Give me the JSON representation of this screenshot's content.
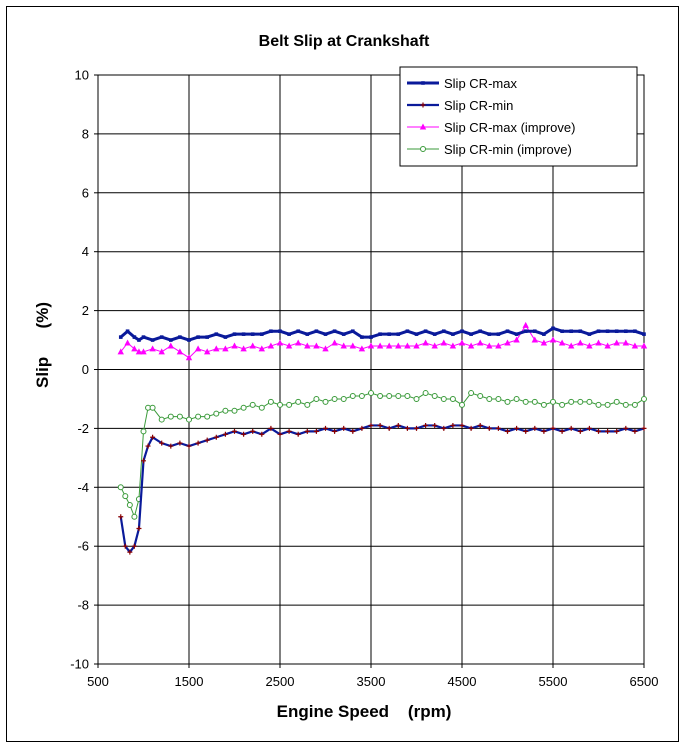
{
  "chart_data": {
    "type": "line",
    "title": "Belt Slip at Crankshaft",
    "xlabel": "Engine Speed    (rpm)",
    "ylabel": "Slip      (%)",
    "xlim": [
      500,
      6500
    ],
    "ylim": [
      -10,
      10
    ],
    "xticks": [
      "500",
      "1500",
      "2500",
      "3500",
      "4500",
      "5500",
      "6500"
    ],
    "yticks": [
      "-10",
      "-8",
      "-6",
      "-4",
      "-2",
      "0",
      "2",
      "4",
      "6",
      "8",
      "10"
    ],
    "grid": true,
    "legend_position": "top-right",
    "series": [
      {
        "name": "Slip CR-max",
        "color": "#0a1a9a",
        "marker": "square",
        "x": [
          750,
          825,
          900,
          950,
          1000,
          1100,
          1200,
          1300,
          1400,
          1500,
          1600,
          1700,
          1800,
          1900,
          2000,
          2100,
          2200,
          2300,
          2400,
          2500,
          2600,
          2700,
          2800,
          2900,
          3000,
          3100,
          3200,
          3300,
          3400,
          3500,
          3600,
          3700,
          3800,
          3900,
          4000,
          4100,
          4200,
          4300,
          4400,
          4500,
          4600,
          4700,
          4800,
          4900,
          5000,
          5100,
          5200,
          5300,
          5400,
          5500,
          5600,
          5700,
          5800,
          5900,
          6000,
          6100,
          6200,
          6300,
          6400,
          6500
        ],
        "y": [
          1.1,
          1.3,
          1.1,
          1.0,
          1.1,
          1.0,
          1.1,
          1.0,
          1.1,
          1.0,
          1.1,
          1.1,
          1.2,
          1.1,
          1.2,
          1.2,
          1.2,
          1.2,
          1.3,
          1.3,
          1.2,
          1.3,
          1.2,
          1.3,
          1.2,
          1.3,
          1.2,
          1.3,
          1.1,
          1.1,
          1.2,
          1.2,
          1.2,
          1.3,
          1.2,
          1.3,
          1.2,
          1.3,
          1.2,
          1.3,
          1.2,
          1.3,
          1.2,
          1.2,
          1.3,
          1.2,
          1.3,
          1.3,
          1.2,
          1.4,
          1.3,
          1.3,
          1.3,
          1.2,
          1.3,
          1.3,
          1.3,
          1.3,
          1.3,
          1.2
        ]
      },
      {
        "name": "Slip CR-min",
        "color": "#0a1a9a",
        "marker": "plus",
        "x": [
          750,
          800,
          850,
          900,
          950,
          1000,
          1050,
          1100,
          1200,
          1300,
          1400,
          1500,
          1600,
          1700,
          1800,
          1900,
          2000,
          2100,
          2200,
          2300,
          2400,
          2500,
          2600,
          2700,
          2800,
          2900,
          3000,
          3100,
          3200,
          3300,
          3400,
          3500,
          3600,
          3700,
          3800,
          3900,
          4000,
          4100,
          4200,
          4300,
          4400,
          4500,
          4600,
          4700,
          4800,
          4900,
          5000,
          5100,
          5200,
          5300,
          5400,
          5500,
          5600,
          5700,
          5800,
          5900,
          6000,
          6100,
          6200,
          6300,
          6400,
          6500
        ],
        "y": [
          -5.0,
          -6.0,
          -6.2,
          -6.0,
          -5.4,
          -3.1,
          -2.6,
          -2.3,
          -2.5,
          -2.6,
          -2.5,
          -2.6,
          -2.5,
          -2.4,
          -2.3,
          -2.2,
          -2.1,
          -2.2,
          -2.1,
          -2.2,
          -2.0,
          -2.2,
          -2.1,
          -2.2,
          -2.1,
          -2.1,
          -2.0,
          -2.1,
          -2.0,
          -2.1,
          -2.0,
          -1.9,
          -1.9,
          -2.0,
          -1.9,
          -2.0,
          -2.0,
          -1.9,
          -1.9,
          -2.0,
          -1.9,
          -1.9,
          -2.0,
          -1.9,
          -2.0,
          -2.0,
          -2.1,
          -2.0,
          -2.1,
          -2.0,
          -2.1,
          -2.0,
          -2.1,
          -2.0,
          -2.1,
          -2.0,
          -2.1,
          -2.1,
          -2.1,
          -2.0,
          -2.1,
          -2.0
        ]
      },
      {
        "name": "Slip CR-max (improve)",
        "color": "#ff00ff",
        "marker": "triangle",
        "x": [
          750,
          825,
          900,
          950,
          1000,
          1100,
          1200,
          1300,
          1400,
          1500,
          1600,
          1700,
          1800,
          1900,
          2000,
          2100,
          2200,
          2300,
          2400,
          2500,
          2600,
          2700,
          2800,
          2900,
          3000,
          3100,
          3200,
          3300,
          3400,
          3500,
          3600,
          3700,
          3800,
          3900,
          4000,
          4100,
          4200,
          4300,
          4400,
          4500,
          4600,
          4700,
          4800,
          4900,
          5000,
          5100,
          5200,
          5300,
          5400,
          5500,
          5600,
          5700,
          5800,
          5900,
          6000,
          6100,
          6200,
          6300,
          6400,
          6500
        ],
        "y": [
          0.6,
          0.9,
          0.7,
          0.6,
          0.6,
          0.7,
          0.6,
          0.8,
          0.6,
          0.4,
          0.7,
          0.6,
          0.7,
          0.7,
          0.8,
          0.7,
          0.8,
          0.7,
          0.8,
          0.9,
          0.8,
          0.9,
          0.8,
          0.8,
          0.7,
          0.9,
          0.8,
          0.8,
          0.7,
          0.8,
          0.8,
          0.8,
          0.8,
          0.8,
          0.8,
          0.9,
          0.8,
          0.9,
          0.8,
          0.9,
          0.8,
          0.9,
          0.8,
          0.8,
          0.9,
          1.0,
          1.5,
          1.0,
          0.9,
          1.0,
          0.9,
          0.8,
          0.9,
          0.8,
          0.9,
          0.8,
          0.9,
          0.9,
          0.8,
          0.8
        ]
      },
      {
        "name": "Slip CR-min (improve)",
        "color": "#3a9a3a",
        "marker": "circle",
        "x": [
          750,
          800,
          850,
          900,
          950,
          1000,
          1050,
          1100,
          1200,
          1300,
          1400,
          1500,
          1600,
          1700,
          1800,
          1900,
          2000,
          2100,
          2200,
          2300,
          2400,
          2500,
          2600,
          2700,
          2800,
          2900,
          3000,
          3100,
          3200,
          3300,
          3400,
          3500,
          3600,
          3700,
          3800,
          3900,
          4000,
          4100,
          4200,
          4300,
          4400,
          4500,
          4600,
          4700,
          4800,
          4900,
          5000,
          5100,
          5200,
          5300,
          5400,
          5500,
          5600,
          5700,
          5800,
          5900,
          6000,
          6100,
          6200,
          6300,
          6400,
          6500
        ],
        "y": [
          -4.0,
          -4.3,
          -4.6,
          -5.0,
          -4.4,
          -2.1,
          -1.3,
          -1.3,
          -1.7,
          -1.6,
          -1.6,
          -1.7,
          -1.6,
          -1.6,
          -1.5,
          -1.4,
          -1.4,
          -1.3,
          -1.2,
          -1.3,
          -1.1,
          -1.2,
          -1.2,
          -1.1,
          -1.2,
          -1.0,
          -1.1,
          -1.0,
          -1.0,
          -0.9,
          -0.9,
          -0.8,
          -0.9,
          -0.9,
          -0.9,
          -0.9,
          -1.0,
          -0.8,
          -0.9,
          -1.0,
          -1.0,
          -1.2,
          -0.8,
          -0.9,
          -1.0,
          -1.0,
          -1.1,
          -1.0,
          -1.1,
          -1.1,
          -1.2,
          -1.1,
          -1.2,
          -1.1,
          -1.1,
          -1.1,
          -1.2,
          -1.2,
          -1.1,
          -1.2,
          -1.2,
          -1.0
        ]
      }
    ]
  }
}
